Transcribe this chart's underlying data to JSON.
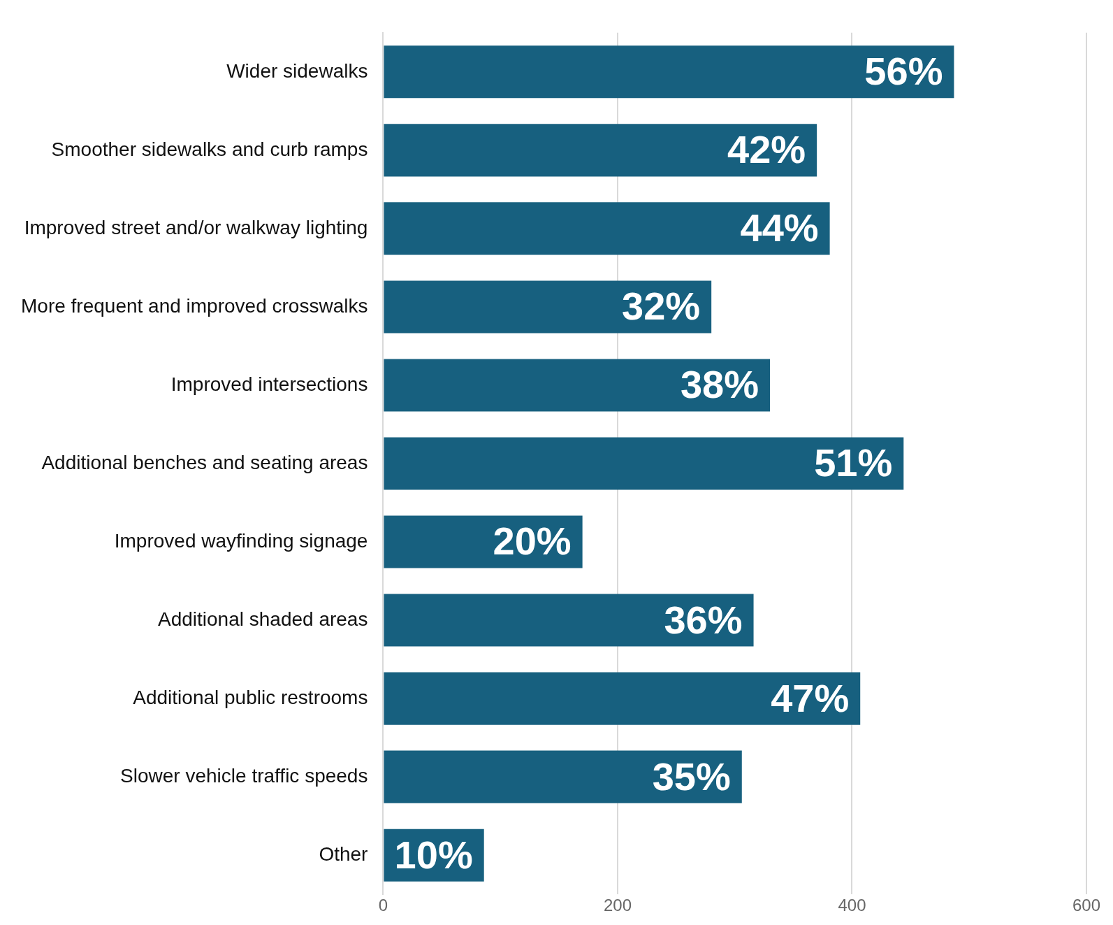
{
  "chart_data": {
    "type": "bar",
    "orientation": "horizontal",
    "categories": [
      "Wider sidewalks",
      "Smoother sidewalks and curb ramps",
      "Improved street and/or walkway lighting",
      "More frequent and improved crosswalks",
      "Improved intersections",
      "Additional benches and seating areas",
      "Improved wayfinding signage",
      "Additional shaded areas",
      "Additional public restrooms",
      "Slower vehicle traffic speeds",
      "Other"
    ],
    "values": [
      487,
      370,
      381,
      280,
      330,
      444,
      170,
      316,
      407,
      306,
      86
    ],
    "color": "#17607f",
    "xlim": [
      0,
      600
    ],
    "xticks": [
      0,
      200,
      400,
      600
    ],
    "grid": "x",
    "legend": false,
    "annotations": [
      {
        "text": "56%",
        "x": 487,
        "y": "Wider sidewalks"
      },
      {
        "text": "42%",
        "x": 370,
        "y": "Smoother sidewalks and curb ramps"
      },
      {
        "text": "44%",
        "x": 381,
        "y": "Improved street and/or walkway lighting"
      },
      {
        "text": "32%",
        "x": 280,
        "y": "More frequent and improved crosswalks"
      },
      {
        "text": "38%",
        "x": 330,
        "y": "Improved intersections"
      },
      {
        "text": "51%",
        "x": 444,
        "y": "Additional benches and seating areas"
      },
      {
        "text": "20%",
        "x": 170,
        "y": "Improved wayfinding signage"
      },
      {
        "text": "36%",
        "x": 316,
        "y": "Additional shaded areas"
      },
      {
        "text": "47%",
        "x": 407,
        "y": "Additional public restrooms"
      },
      {
        "text": "35%",
        "x": 306,
        "y": "Slower vehicle traffic speeds"
      },
      {
        "text": "10%",
        "x": 86,
        "y": "Other"
      }
    ]
  }
}
